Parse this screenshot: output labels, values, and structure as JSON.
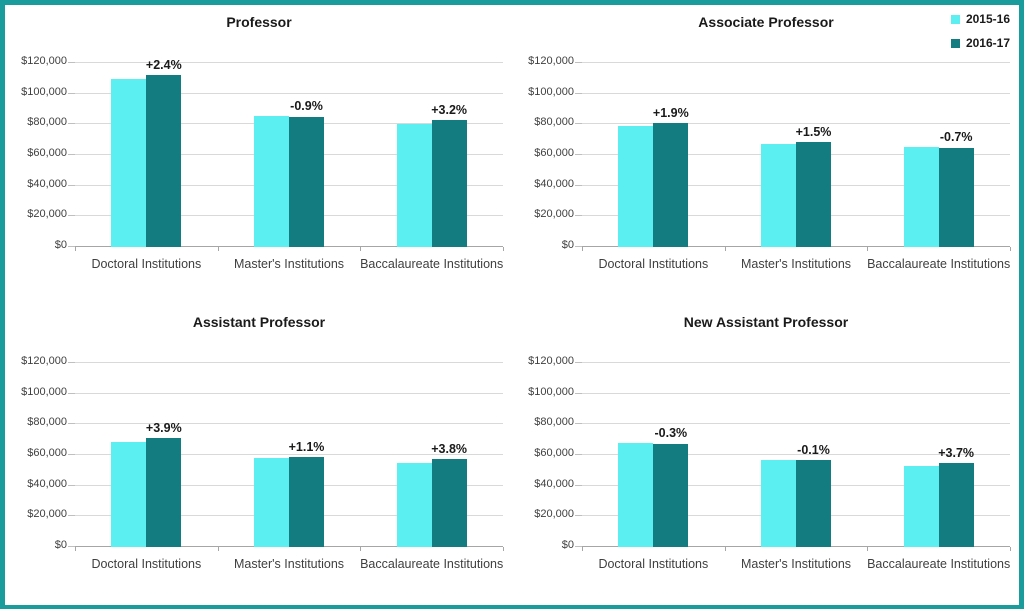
{
  "window": {
    "border_color": "#1A9C9C",
    "bottom_edge_color": "#17375E",
    "background": "#FFFFFF"
  },
  "colors": {
    "series": [
      "#5BEFF1",
      "#127C80"
    ],
    "gridline": "#D9D9D9",
    "axis_line": "#A6A6A6",
    "tick": "#BFBFBF",
    "title_text": "#1A1A1A",
    "label_text": "#3F3F3F"
  },
  "legend": {
    "position": "top-right of Associate Professor chart",
    "items": [
      {
        "label": "2015-16",
        "color": "#5BEFF1"
      },
      {
        "label": "2016-17",
        "color": "#127C80"
      }
    ]
  },
  "axis": {
    "ymin": 0,
    "ymax": 120000,
    "ystep": 20000,
    "ytick_labels": [
      "$0",
      "$20,000",
      "$40,000",
      "$60,000",
      "$80,000",
      "$100,000",
      "$120,000"
    ],
    "grid": true
  },
  "chart_data": [
    {
      "type": "bar",
      "title": "Professor",
      "categories": [
        "Doctoral Institutions",
        "Master's Institutions",
        "Baccalaureate Institutions"
      ],
      "series": [
        {
          "name": "2015-16",
          "values": [
            109500,
            85500,
            80500
          ]
        },
        {
          "name": "2016-17",
          "values": [
            112100,
            84700,
            83100
          ]
        }
      ],
      "change_labels": [
        "+2.4%",
        "-0.9%",
        "+3.2%"
      ],
      "xlabel": "",
      "ylabel": "",
      "ylim": [
        0,
        120000
      ],
      "grid": true
    },
    {
      "type": "bar",
      "title": "Associate Professor",
      "categories": [
        "Doctoral Institutions",
        "Master's Institutions",
        "Baccalaureate Institutions"
      ],
      "series": [
        {
          "name": "2015-16",
          "values": [
            79100,
            67200,
            65200
          ]
        },
        {
          "name": "2016-17",
          "values": [
            80600,
            68200,
            64700
          ]
        }
      ],
      "change_labels": [
        "+1.9%",
        "+1.5%",
        "-0.7%"
      ],
      "xlabel": "",
      "ylabel": "",
      "ylim": [
        0,
        120000
      ],
      "grid": true,
      "legend_position": "top-right"
    },
    {
      "type": "bar",
      "title": "Assistant Professor",
      "categories": [
        "Doctoral Institutions",
        "Master's Institutions",
        "Baccalaureate Institutions"
      ],
      "series": [
        {
          "name": "2015-16",
          "values": [
            68700,
            58200,
            55000
          ]
        },
        {
          "name": "2016-17",
          "values": [
            71400,
            58800,
            57100
          ]
        }
      ],
      "change_labels": [
        "+3.9%",
        "+1.1%",
        "+3.8%"
      ],
      "xlabel": "",
      "ylabel": "",
      "ylim": [
        0,
        120000
      ],
      "grid": true
    },
    {
      "type": "bar",
      "title": "New Assistant Professor",
      "categories": [
        "Doctoral Institutions",
        "Master's Institutions",
        "Baccalaureate Institutions"
      ],
      "series": [
        {
          "name": "2015-16",
          "values": [
            67600,
            57000,
            53000
          ]
        },
        {
          "name": "2016-17",
          "values": [
            67400,
            56900,
            55000
          ]
        }
      ],
      "change_labels": [
        "-0.3%",
        "-0.1%",
        "+3.7%"
      ],
      "xlabel": "",
      "ylabel": "",
      "ylim": [
        0,
        120000
      ],
      "grid": true
    }
  ]
}
